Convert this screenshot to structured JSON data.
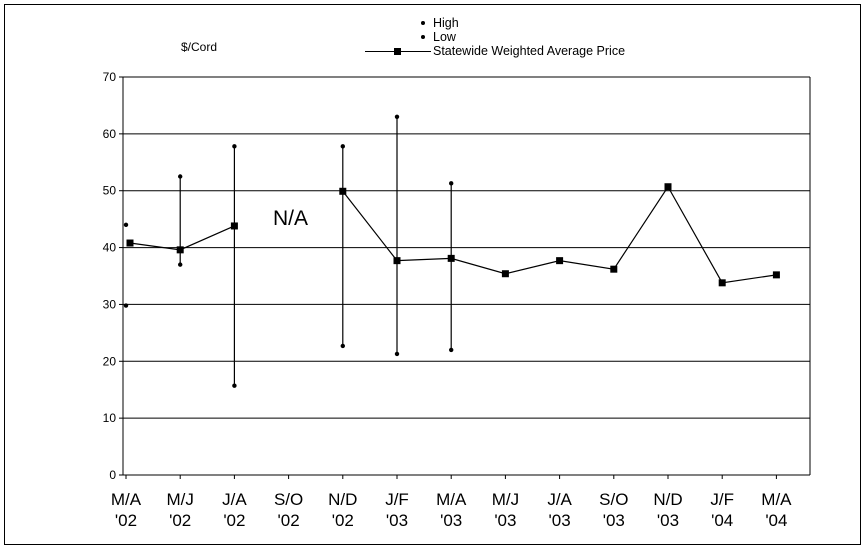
{
  "chart_data": {
    "type": "line",
    "ylabel": "$/Cord",
    "ylim": [
      0,
      70
    ],
    "yticks": [
      0,
      10,
      20,
      30,
      40,
      50,
      60,
      70
    ],
    "grid": true,
    "legend_position": "top-center",
    "categories": [
      [
        "M/A",
        "'02"
      ],
      [
        "M/J",
        "'02"
      ],
      [
        "J/A",
        "'02"
      ],
      [
        "S/O",
        "'02"
      ],
      [
        "N/D",
        "'02"
      ],
      [
        "J/F",
        "'03"
      ],
      [
        "M/A",
        "'03"
      ],
      [
        "M/J",
        "'03"
      ],
      [
        "J/A",
        "'03"
      ],
      [
        "S/O",
        "'03"
      ],
      [
        "N/D",
        "'03"
      ],
      [
        "J/F",
        "'04"
      ],
      [
        "M/A",
        "'04"
      ]
    ],
    "series": [
      {
        "name": "High",
        "values": [
          44,
          52.5,
          57.8,
          null,
          57.8,
          63,
          51.3,
          null,
          null,
          null,
          null,
          null,
          null
        ]
      },
      {
        "name": "Low",
        "values": [
          29.8,
          37,
          15.7,
          null,
          22.7,
          21.3,
          22,
          null,
          null,
          null,
          null,
          null,
          null
        ]
      },
      {
        "name": "Statewide Weighted Average Price",
        "values": [
          40.8,
          39.6,
          43.8,
          null,
          49.9,
          37.7,
          38.1,
          35.4,
          37.7,
          36.2,
          50.7,
          33.8,
          35.2
        ]
      }
    ],
    "annotations": [
      "N/A"
    ]
  }
}
